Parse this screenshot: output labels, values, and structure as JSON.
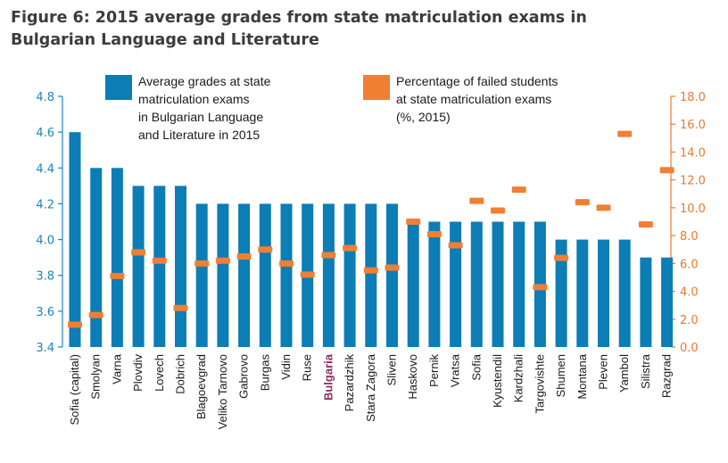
{
  "figure": {
    "title_line1": "Figure 6: 2015 average grades from state matriculation exams in",
    "title_line2": "Bulgarian Language and Literature"
  },
  "colors": {
    "bar": "#0c7db5",
    "marker": "#f07f33",
    "left_axis": "#1a86b8",
    "right_axis": "#e97a2f",
    "highlight_label": "#8a2e63"
  },
  "chart_data": {
    "type": "bar",
    "highlight_category": "Bulgaria",
    "categories": [
      "Sofia (capital)",
      "Smolyan",
      "Varna",
      "Plovdiv",
      "Lovech",
      "Dobrich",
      "Blagoevgrad",
      "Veliko Tarnovo",
      "Gabrovo",
      "Burgas",
      "Vidin",
      "Ruse",
      "Bulgaria",
      "Pazardzhik",
      "Stara Zagora",
      "Sliven",
      "Haskovo",
      "Pernik",
      "Vratsa",
      "Sofia",
      "Kyustendil",
      "Kardzhali",
      "Targovishte",
      "Shumen",
      "Montana",
      "Pleven",
      "Yambol",
      "Silistra",
      "Razgrad"
    ],
    "series": [
      {
        "name": "Average grades at state matriculation exams in Bulgarian Language and Literature in 2015",
        "legend_lines": [
          "Average grades at state",
          "matriculation exams",
          "in Bulgarian Language",
          "and Literature in 2015"
        ],
        "type": "bar",
        "axis": "left",
        "values": [
          4.6,
          4.4,
          4.4,
          4.3,
          4.3,
          4.3,
          4.2,
          4.2,
          4.2,
          4.2,
          4.2,
          4.2,
          4.2,
          4.2,
          4.2,
          4.2,
          4.1,
          4.1,
          4.1,
          4.1,
          4.1,
          4.1,
          4.1,
          4.0,
          4.0,
          4.0,
          4.0,
          3.9,
          3.9
        ]
      },
      {
        "name": "Percentage of failed students at state matriculation exams (%, 2015)",
        "legend_lines": [
          "Percentage of failed students",
          "at state matriculation exams",
          "(%, 2015)"
        ],
        "type": "marker",
        "axis": "right",
        "values": [
          1.6,
          2.3,
          5.1,
          6.8,
          6.2,
          2.8,
          6.0,
          6.2,
          6.5,
          7.0,
          6.0,
          5.2,
          6.6,
          7.1,
          5.5,
          5.7,
          9.0,
          8.1,
          7.3,
          10.5,
          9.8,
          11.3,
          4.3,
          6.4,
          10.4,
          10.0,
          15.3,
          8.8,
          12.7
        ]
      }
    ],
    "y_left": {
      "min": 3.4,
      "max": 4.8,
      "ticks": [
        3.4,
        3.6,
        3.8,
        4.0,
        4.2,
        4.4,
        4.6,
        4.8
      ],
      "tick_labels": [
        "3.4",
        "3.6",
        "3.8",
        "4.0",
        "4.2",
        "4.4",
        "4.6",
        "4.8"
      ]
    },
    "y_right": {
      "min": 0,
      "max": 18,
      "ticks": [
        0,
        2,
        4,
        6,
        8,
        10,
        12,
        14,
        16,
        18
      ],
      "tick_labels": [
        "0.0",
        "2.0",
        "4.0",
        "6.0",
        "8.0",
        "10.0",
        "12.0",
        "14.0",
        "16.0",
        "18.0"
      ]
    },
    "grid": false,
    "legend_position": "top"
  }
}
